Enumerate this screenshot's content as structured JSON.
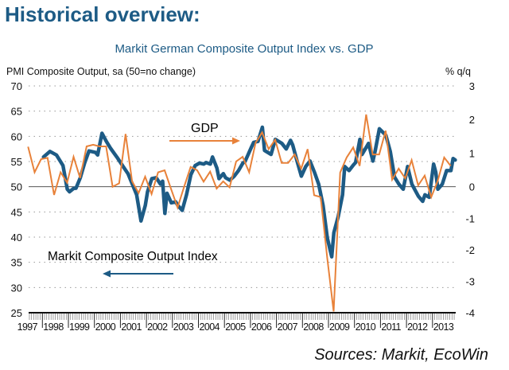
{
  "header": {
    "title": "Historical overview:",
    "source": "Sources: Markit, EcoWin"
  },
  "chart_data": {
    "type": "line",
    "title": "Markit German Composite Output Index vs. GDP",
    "left_axis": {
      "label": "PMI Composite Output, sa (50=no change)",
      "range": [
        25,
        70
      ],
      "ticks": [
        70,
        65,
        60,
        55,
        50,
        45,
        40,
        35,
        30,
        25
      ]
    },
    "right_axis": {
      "label": "% q/q",
      "range": [
        -4,
        3
      ],
      "ticks": [
        3,
        2,
        1,
        0,
        -1,
        -2,
        -3,
        -4
      ]
    },
    "x_axis": {
      "tick_labels": [
        "1997",
        "1998",
        "1999",
        "2000",
        "2001",
        "2002",
        "2003",
        "2004",
        "2005",
        "2006",
        "2007",
        "2008",
        "2009",
        "2010",
        "2011",
        "2012",
        "2013"
      ]
    },
    "grid": "dotted horizontal",
    "reference_line": 50,
    "colors": {
      "pmi": "#1d5b85",
      "gdp": "#e8823a"
    },
    "annotations": {
      "gdp": "GDP",
      "pmi": "Markit Composite Output Index"
    },
    "series": [
      {
        "name": "Markit Composite Output Index",
        "axis": "left",
        "frequency": "monthly",
        "points": [
          [
            "1998-01",
            55.9
          ],
          [
            "1998-04",
            57.0
          ],
          [
            "1998-07",
            56.3
          ],
          [
            "1998-10",
            54.2
          ],
          [
            "1998-12",
            49.5
          ],
          [
            "1999-01",
            49.0
          ],
          [
            "1999-03",
            49.7
          ],
          [
            "1999-04",
            49.7
          ],
          [
            "1999-06",
            51.8
          ],
          [
            "1999-08",
            54.7
          ],
          [
            "1999-10",
            57.1
          ],
          [
            "2000-01",
            56.8
          ],
          [
            "2000-02",
            56.3
          ],
          [
            "2000-04",
            60.6
          ],
          [
            "2000-06",
            59.0
          ],
          [
            "2000-08",
            57.6
          ],
          [
            "2000-11",
            55.8
          ],
          [
            "2001-01",
            54.5
          ],
          [
            "2001-04",
            52.6
          ],
          [
            "2001-06",
            50.5
          ],
          [
            "2001-08",
            48.4
          ],
          [
            "2001-10",
            43.2
          ],
          [
            "2001-12",
            46.3
          ],
          [
            "2002-01",
            49.0
          ],
          [
            "2002-03",
            51.6
          ],
          [
            "2002-05",
            51.8
          ],
          [
            "2002-07",
            50.5
          ],
          [
            "2002-08",
            51.1
          ],
          [
            "2002-09",
            44.7
          ],
          [
            "2002-10",
            48.7
          ],
          [
            "2002-12",
            46.8
          ],
          [
            "2003-02",
            47.0
          ],
          [
            "2003-03",
            46.3
          ],
          [
            "2003-05",
            45.3
          ],
          [
            "2003-07",
            48.4
          ],
          [
            "2003-09",
            52.4
          ],
          [
            "2003-11",
            54.2
          ],
          [
            "2004-01",
            54.7
          ],
          [
            "2004-03",
            54.5
          ],
          [
            "2004-04",
            54.8
          ],
          [
            "2004-06",
            54.5
          ],
          [
            "2004-07",
            55.9
          ],
          [
            "2004-09",
            53.7
          ],
          [
            "2004-10",
            51.6
          ],
          [
            "2004-12",
            52.6
          ],
          [
            "2005-01",
            51.8
          ],
          [
            "2005-03",
            51.3
          ],
          [
            "2005-05",
            52.1
          ],
          [
            "2005-07",
            53.2
          ],
          [
            "2005-09",
            54.7
          ],
          [
            "2005-10",
            55.0
          ],
          [
            "2006-01",
            57.9
          ],
          [
            "2006-02",
            58.8
          ],
          [
            "2006-04",
            59.0
          ],
          [
            "2006-06",
            61.8
          ],
          [
            "2006-07",
            57.2
          ],
          [
            "2006-10",
            56.4
          ],
          [
            "2006-12",
            59.4
          ],
          [
            "2007-03",
            58.6
          ],
          [
            "2007-05",
            57.5
          ],
          [
            "2007-07",
            59.2
          ],
          [
            "2007-08",
            58.3
          ],
          [
            "2007-10",
            55.1
          ],
          [
            "2007-12",
            52.1
          ],
          [
            "2008-02",
            54.0
          ],
          [
            "2008-04",
            55.1
          ],
          [
            "2008-06",
            52.9
          ],
          [
            "2008-08",
            50.5
          ],
          [
            "2008-10",
            46.3
          ],
          [
            "2008-12",
            39.8
          ],
          [
            "2009-02",
            36.1
          ],
          [
            "2009-03",
            40.9
          ],
          [
            "2009-05",
            44.1
          ],
          [
            "2009-07",
            48.4
          ],
          [
            "2009-08",
            54.0
          ],
          [
            "2009-10",
            53.2
          ],
          [
            "2009-12",
            54.3
          ],
          [
            "2010-01",
            54.8
          ],
          [
            "2010-03",
            59.4
          ],
          [
            "2010-04",
            56.4
          ],
          [
            "2010-07",
            58.6
          ],
          [
            "2010-09",
            55.1
          ],
          [
            "2010-10",
            57.0
          ],
          [
            "2010-12",
            61.5
          ],
          [
            "2011-03",
            60.2
          ],
          [
            "2011-05",
            57.0
          ],
          [
            "2011-07",
            51.9
          ],
          [
            "2011-09",
            50.5
          ],
          [
            "2011-11",
            49.5
          ],
          [
            "2012-01",
            54.0
          ],
          [
            "2012-03",
            50.5
          ],
          [
            "2012-06",
            48.1
          ],
          [
            "2012-08",
            47.1
          ],
          [
            "2012-09",
            48.4
          ],
          [
            "2012-11",
            47.9
          ],
          [
            "2013-01",
            54.5
          ],
          [
            "2013-02",
            52.9
          ],
          [
            "2013-03",
            49.5
          ],
          [
            "2013-05",
            50.5
          ],
          [
            "2013-07",
            53.2
          ],
          [
            "2013-09",
            53.2
          ],
          [
            "2013-10",
            55.6
          ],
          [
            "2013-11",
            55.3
          ]
        ]
      },
      {
        "name": "GDP",
        "axis": "right",
        "frequency": "quarterly",
        "start": "1997Q2",
        "values": [
          1.19,
          0.43,
          0.82,
          0.86,
          -0.26,
          0.43,
          0.12,
          0.89,
          0.26,
          1.2,
          1.25,
          1.2,
          1.2,
          0.0,
          0.1,
          1.57,
          0.16,
          -0.2,
          0.3,
          -0.23,
          0.43,
          0.49,
          -0.08,
          -0.66,
          0.0,
          0.59,
          0.49,
          0.15,
          0.45,
          -0.06,
          0.16,
          -0.02,
          0.75,
          0.89,
          0.43,
          1.31,
          1.62,
          1.12,
          1.4,
          0.71,
          0.71,
          0.96,
          0.54,
          1.12,
          -0.27,
          -0.33,
          -2.25,
          -3.96,
          0.42,
          0.87,
          1.17,
          0.62,
          2.15,
          0.96,
          0.96,
          1.67,
          0.21,
          0.54,
          0.25,
          0.79,
          0.04,
          0.33,
          -0.33,
          0.17,
          0.87,
          0.62
        ]
      }
    ]
  }
}
